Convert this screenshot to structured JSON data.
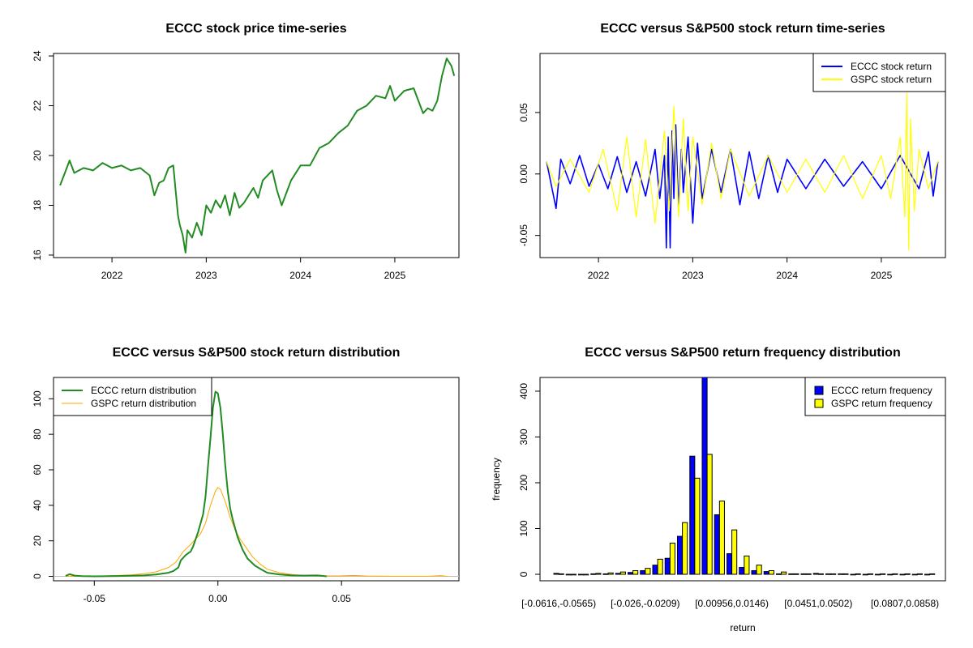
{
  "chart_data": [
    {
      "type": "line",
      "title": "ECCC stock price time-series",
      "xlabel": "",
      "ylabel": "",
      "xlim": [
        2021.38,
        2025.68
      ],
      "ylim": [
        15.9,
        24.1
      ],
      "x_ticks": [
        2022,
        2023,
        2024,
        2025
      ],
      "x_tick_labels": [
        "2022",
        "2023",
        "2024",
        "2025"
      ],
      "y_ticks": [
        16,
        18,
        20,
        22,
        24
      ],
      "y_tick_labels": [
        "16",
        "18",
        "20",
        "22",
        "24"
      ],
      "color": "#228B22",
      "x": [
        2021.45,
        2021.5,
        2021.55,
        2021.6,
        2021.65,
        2021.7,
        2021.8,
        2021.9,
        2022.0,
        2022.1,
        2022.2,
        2022.3,
        2022.4,
        2022.45,
        2022.5,
        2022.55,
        2022.6,
        2022.65,
        2022.7,
        2022.72,
        2022.75,
        2022.78,
        2022.8,
        2022.85,
        2022.9,
        2022.95,
        2023.0,
        2023.05,
        2023.1,
        2023.15,
        2023.2,
        2023.25,
        2023.3,
        2023.35,
        2023.4,
        2023.5,
        2023.55,
        2023.6,
        2023.7,
        2023.75,
        2023.8,
        2023.85,
        2023.9,
        2024.0,
        2024.1,
        2024.2,
        2024.3,
        2024.4,
        2024.5,
        2024.6,
        2024.7,
        2024.8,
        2024.9,
        2024.95,
        2025.0,
        2025.05,
        2025.1,
        2025.2,
        2025.3,
        2025.35,
        2025.4,
        2025.45,
        2025.5,
        2025.55,
        2025.6,
        2025.63
      ],
      "y": [
        18.8,
        19.3,
        19.8,
        19.3,
        19.4,
        19.5,
        19.4,
        19.7,
        19.5,
        19.6,
        19.4,
        19.5,
        19.2,
        18.4,
        18.9,
        19.0,
        19.5,
        19.6,
        17.6,
        17.2,
        16.8,
        16.1,
        17.0,
        16.7,
        17.3,
        16.8,
        18.0,
        17.7,
        18.2,
        17.9,
        18.4,
        17.6,
        18.5,
        17.9,
        18.1,
        18.7,
        18.3,
        19.0,
        19.4,
        18.6,
        18.0,
        18.5,
        19.0,
        19.6,
        19.6,
        20.3,
        20.5,
        20.9,
        21.2,
        21.8,
        22.0,
        22.4,
        22.3,
        22.8,
        22.2,
        22.4,
        22.6,
        22.7,
        21.7,
        21.9,
        21.8,
        22.2,
        23.2,
        23.9,
        23.6,
        23.2
      ]
    },
    {
      "type": "line",
      "title": "ECCC versus S&P500 stock return time-series",
      "xlabel": "",
      "ylabel": "",
      "xlim": [
        2021.38,
        2025.68
      ],
      "ylim": [
        -0.068,
        0.098
      ],
      "x_ticks": [
        2022,
        2023,
        2024,
        2025
      ],
      "x_tick_labels": [
        "2022",
        "2023",
        "2024",
        "2025"
      ],
      "y_ticks": [
        -0.05,
        0.0,
        0.05
      ],
      "y_tick_labels": [
        "-0.05",
        "0.00",
        "0.05"
      ],
      "legend_position": "top-right",
      "series": [
        {
          "name": "ECCC stock return",
          "color": "#0000FF",
          "x": [
            2021.45,
            2021.55,
            2021.6,
            2021.7,
            2021.8,
            2021.9,
            2022.0,
            2022.1,
            2022.2,
            2022.3,
            2022.4,
            2022.5,
            2022.6,
            2022.65,
            2022.7,
            2022.72,
            2022.74,
            2022.76,
            2022.78,
            2022.8,
            2022.82,
            2022.85,
            2022.88,
            2022.9,
            2022.95,
            2023.0,
            2023.05,
            2023.1,
            2023.2,
            2023.3,
            2023.4,
            2023.5,
            2023.6,
            2023.7,
            2023.8,
            2023.9,
            2024.0,
            2024.2,
            2024.4,
            2024.6,
            2024.8,
            2025.0,
            2025.2,
            2025.4,
            2025.5,
            2025.55,
            2025.6
          ],
          "y": [
            0.01,
            -0.028,
            0.012,
            -0.008,
            0.015,
            -0.01,
            0.008,
            -0.012,
            0.014,
            -0.015,
            0.01,
            -0.018,
            0.02,
            -0.02,
            0.015,
            -0.06,
            0.03,
            -0.06,
            0.035,
            -0.02,
            0.04,
            -0.03,
            0.02,
            -0.015,
            0.03,
            -0.04,
            0.025,
            -0.02,
            0.02,
            -0.015,
            0.02,
            -0.025,
            0.018,
            -0.02,
            0.015,
            -0.015,
            0.012,
            -0.012,
            0.012,
            -0.01,
            0.01,
            -0.012,
            0.015,
            -0.012,
            0.018,
            -0.018,
            0.01
          ]
        },
        {
          "name": "GSPC stock return",
          "color": "#FFFF00",
          "x": [
            2021.45,
            2021.55,
            2021.7,
            2021.9,
            2022.05,
            2022.2,
            2022.3,
            2022.4,
            2022.5,
            2022.6,
            2022.7,
            2022.75,
            2022.8,
            2022.85,
            2022.9,
            2022.95,
            2023.0,
            2023.1,
            2023.2,
            2023.3,
            2023.4,
            2023.6,
            2023.8,
            2024.0,
            2024.2,
            2024.4,
            2024.6,
            2024.8,
            2025.0,
            2025.1,
            2025.2,
            2025.25,
            2025.27,
            2025.29,
            2025.31,
            2025.35,
            2025.4,
            2025.5,
            2025.6
          ],
          "y": [
            0.01,
            -0.01,
            0.012,
            -0.015,
            0.02,
            -0.03,
            0.03,
            -0.035,
            0.028,
            -0.04,
            0.035,
            -0.03,
            0.055,
            -0.035,
            0.045,
            -0.03,
            0.03,
            -0.025,
            0.025,
            -0.02,
            0.02,
            -0.018,
            0.015,
            -0.015,
            0.012,
            -0.015,
            0.015,
            -0.02,
            0.015,
            -0.02,
            0.03,
            -0.035,
            0.066,
            -0.062,
            0.045,
            -0.03,
            0.02,
            -0.012,
            0.01
          ]
        }
      ]
    },
    {
      "type": "line",
      "title": "ECCC versus S&P500 stock return distribution",
      "xlabel": "",
      "ylabel": "",
      "xlim": [
        -0.0665,
        0.0975
      ],
      "ylim": [
        -2.5,
        112
      ],
      "x_ticks": [
        -0.05,
        0.0,
        0.05
      ],
      "x_tick_labels": [
        "-0.05",
        "0.00",
        "0.05"
      ],
      "y_ticks": [
        0,
        20,
        40,
        60,
        80,
        100
      ],
      "y_tick_labels": [
        "0",
        "20",
        "40",
        "60",
        "80",
        "100"
      ],
      "legend_position": "top-left",
      "series": [
        {
          "name": "ECCC return distribution",
          "color": "#228B22",
          "x": [
            -0.0616,
            -0.06,
            -0.058,
            -0.055,
            -0.05,
            -0.04,
            -0.03,
            -0.025,
            -0.02,
            -0.018,
            -0.016,
            -0.015,
            -0.013,
            -0.011,
            -0.01,
            -0.008,
            -0.006,
            -0.005,
            -0.004,
            -0.003,
            -0.002,
            -0.001,
            0.0,
            0.001,
            0.002,
            0.003,
            0.004,
            0.005,
            0.006,
            0.008,
            0.01,
            0.012,
            0.015,
            0.018,
            0.02,
            0.025,
            0.03,
            0.035,
            0.04,
            0.042,
            0.044
          ],
          "y": [
            0.3,
            1.2,
            0.4,
            0.1,
            0.0,
            0.2,
            0.5,
            1.0,
            2.0,
            3.0,
            5.0,
            9.0,
            12.0,
            14.0,
            17.0,
            25.0,
            35.0,
            45.0,
            62.0,
            78.0,
            95.0,
            104.0,
            103.0,
            95.0,
            80.0,
            62.0,
            48.0,
            38.0,
            32.0,
            22.0,
            15.0,
            10.0,
            6.0,
            3.5,
            2.0,
            1.0,
            0.5,
            0.4,
            0.5,
            0.3,
            0.0
          ]
        },
        {
          "name": "GSPC return distribution",
          "color": "#FFA500",
          "x": [
            -0.0616,
            -0.055,
            -0.045,
            -0.035,
            -0.03,
            -0.025,
            -0.02,
            -0.017,
            -0.014,
            -0.011,
            -0.009,
            -0.007,
            -0.005,
            -0.003,
            -0.001,
            0.0,
            0.001,
            0.003,
            0.005,
            0.007,
            0.009,
            0.011,
            0.014,
            0.017,
            0.02,
            0.025,
            0.03,
            0.035,
            0.04,
            0.05,
            0.055,
            0.06,
            0.07,
            0.085,
            0.09,
            0.093
          ],
          "y": [
            0.0,
            0.1,
            0.3,
            0.8,
            1.5,
            2.5,
            5.0,
            8.0,
            14.0,
            18.0,
            21.0,
            24.0,
            30.0,
            40.0,
            48.0,
            50.0,
            49.0,
            42.0,
            33.0,
            26.0,
            21.0,
            17.0,
            11.0,
            7.0,
            4.0,
            2.0,
            1.0,
            0.4,
            0.2,
            0.3,
            0.5,
            0.2,
            0.0,
            0.0,
            0.4,
            0.0
          ]
        }
      ]
    },
    {
      "type": "bar",
      "title": "ECCC versus S&P500 return frequency distribution",
      "xlabel": "return",
      "ylabel": "frequency",
      "ylim": [
        0,
        430
      ],
      "y_ticks": [
        0,
        100,
        200,
        300,
        400
      ],
      "y_tick_labels": [
        "0",
        "100",
        "200",
        "300",
        "400"
      ],
      "x_tick_labels": [
        "[-0.0616,-0.0565)",
        "[-0.026,-0.0209)",
        "[0.00956,0.0146)",
        "[0.0451,0.0502)",
        "[0.0807,0.0858)"
      ],
      "x_tick_bins": [
        0,
        7,
        14,
        21,
        28
      ],
      "legend_position": "top-right",
      "categories": [
        "b1",
        "b2",
        "b3",
        "b4",
        "b5",
        "b6",
        "b7",
        "b8",
        "b9",
        "b10",
        "b11",
        "b12",
        "b13",
        "b14",
        "b15",
        "b16",
        "b17",
        "b18",
        "b19",
        "b20",
        "b21",
        "b22",
        "b23",
        "b24",
        "b25",
        "b26",
        "b27",
        "b28",
        "b29",
        "b30",
        "b31"
      ],
      "series": [
        {
          "name": "ECCC return frequency",
          "color": "#0000FF",
          "values": [
            2,
            0,
            0,
            1,
            1,
            2,
            4,
            8,
            20,
            35,
            83,
            258,
            440,
            130,
            45,
            15,
            8,
            6,
            1,
            1,
            1,
            2,
            1,
            1,
            0,
            0,
            0,
            0,
            0,
            0,
            0
          ]
        },
        {
          "name": "GSPC return frequency",
          "color": "#FFFF00",
          "values": [
            1,
            0,
            0,
            2,
            3,
            5,
            8,
            13,
            33,
            68,
            113,
            210,
            262,
            160,
            97,
            40,
            20,
            8,
            5,
            1,
            1,
            1,
            1,
            1,
            1,
            1,
            1,
            1,
            1,
            1,
            1
          ]
        }
      ]
    }
  ]
}
